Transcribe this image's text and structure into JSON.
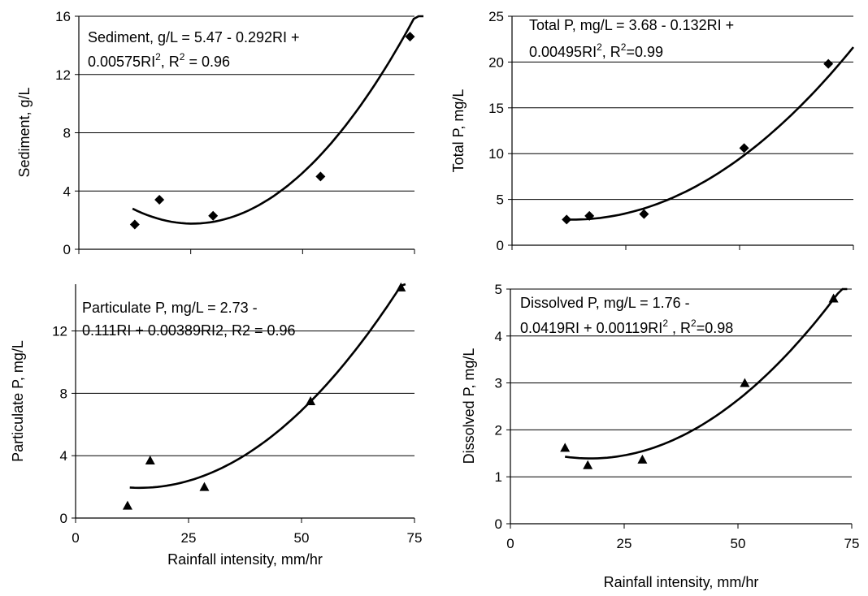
{
  "chart_data": [
    {
      "type": "scatter",
      "ylabel": "Sediment, g/L",
      "xlabel": "",
      "xlim": [
        0,
        75
      ],
      "ylim": [
        0,
        16
      ],
      "x_ticks": [],
      "y_ticks": [
        0,
        4,
        8,
        12,
        16
      ],
      "x_minor_ticks": [
        0,
        25,
        50,
        75
      ],
      "grid": "horizontal",
      "marker": "diamond",
      "annotation": {
        "line1": "Sediment, g/L = 5.47 - 0.292RI +",
        "line2_a": "0.00575RI",
        "line2_sup": "2",
        "line2_b": ", R",
        "line2_sup2": "2",
        "line2_c": " = 0.96"
      },
      "fit": {
        "a": 5.47,
        "b": -0.292,
        "c": 0.00575,
        "x_range": [
          12,
          77
        ]
      },
      "points": [
        {
          "x": 12.5,
          "y": 1.7
        },
        {
          "x": 18,
          "y": 3.4
        },
        {
          "x": 30,
          "y": 2.3
        },
        {
          "x": 54,
          "y": 5.0
        },
        {
          "x": 74,
          "y": 14.6
        }
      ]
    },
    {
      "type": "scatter",
      "ylabel": "Total P, mg/L",
      "xlabel": "",
      "xlim": [
        0,
        75
      ],
      "ylim": [
        0,
        25
      ],
      "x_ticks": [],
      "y_ticks": [
        0,
        5,
        10,
        15,
        20,
        25
      ],
      "x_minor_ticks": [
        0,
        25,
        50,
        75
      ],
      "grid": "horizontal",
      "marker": "diamond",
      "annotation": {
        "line1": "Total P, mg/L = 3.68 - 0.132RI +",
        "line2_a": "0.00495RI",
        "line2_sup": "2",
        "line2_b": ", R",
        "line2_sup2": "2",
        "line2_c": "=0.99"
      },
      "fit": {
        "a": 3.68,
        "b": -0.132,
        "c": 0.00495,
        "x_range": [
          12,
          75
        ]
      },
      "points": [
        {
          "x": 12,
          "y": 2.8
        },
        {
          "x": 17,
          "y": 3.2
        },
        {
          "x": 29,
          "y": 3.4
        },
        {
          "x": 51,
          "y": 10.6
        },
        {
          "x": 69.5,
          "y": 19.8
        }
      ]
    },
    {
      "type": "scatter",
      "ylabel": "Particulate P, mg/L",
      "xlabel": "Rainfall intensity, mm/hr",
      "xlim": [
        0,
        75
      ],
      "ylim": [
        0,
        15
      ],
      "x_ticks": [
        0,
        25,
        50,
        75
      ],
      "y_ticks": [
        0,
        4,
        8,
        12
      ],
      "x_minor_ticks": [
        0,
        25,
        50,
        75
      ],
      "grid": "horizontal",
      "marker": "triangle",
      "annotation": {
        "line1": "Particulate P, mg/L = 2.73 -",
        "line2_a": "0.111RI + 0.00389RI2, R2 = 0.96",
        "line2_sup": "",
        "line2_b": "",
        "line2_sup2": "",
        "line2_c": ""
      },
      "fit": {
        "a": 2.73,
        "b": -0.111,
        "c": 0.00389,
        "x_range": [
          12,
          73
        ]
      },
      "points": [
        {
          "x": 11.5,
          "y": 0.8
        },
        {
          "x": 16.5,
          "y": 3.7
        },
        {
          "x": 28.5,
          "y": 2.0
        },
        {
          "x": 52,
          "y": 7.5
        },
        {
          "x": 72,
          "y": 14.8
        }
      ]
    },
    {
      "type": "scatter",
      "ylabel": "Dissolved P, mg/L",
      "xlabel": "Rainfall intensity, mm/hr",
      "xlim": [
        0,
        75
      ],
      "ylim": [
        0,
        5
      ],
      "x_ticks": [
        0,
        25,
        50,
        75
      ],
      "y_ticks": [
        0,
        1,
        2,
        3,
        4,
        5
      ],
      "x_minor_ticks": [
        0,
        25,
        50,
        75
      ],
      "grid": "horizontal",
      "marker": "triangle",
      "annotation": {
        "line1": "Dissolved P, mg/L = 1.76 -",
        "line2_a": "0.0419RI + 0.00119RI",
        "line2_sup": "2",
        "line2_b": " , R",
        "line2_sup2": "2",
        "line2_c": "=0.98"
      },
      "fit": {
        "a": 1.76,
        "b": -0.0419,
        "c": 0.00119,
        "x_range": [
          12,
          74
        ]
      },
      "points": [
        {
          "x": 12,
          "y": 1.62
        },
        {
          "x": 17,
          "y": 1.25
        },
        {
          "x": 29,
          "y": 1.37
        },
        {
          "x": 51.5,
          "y": 3.0
        },
        {
          "x": 71,
          "y": 4.8
        }
      ]
    }
  ]
}
